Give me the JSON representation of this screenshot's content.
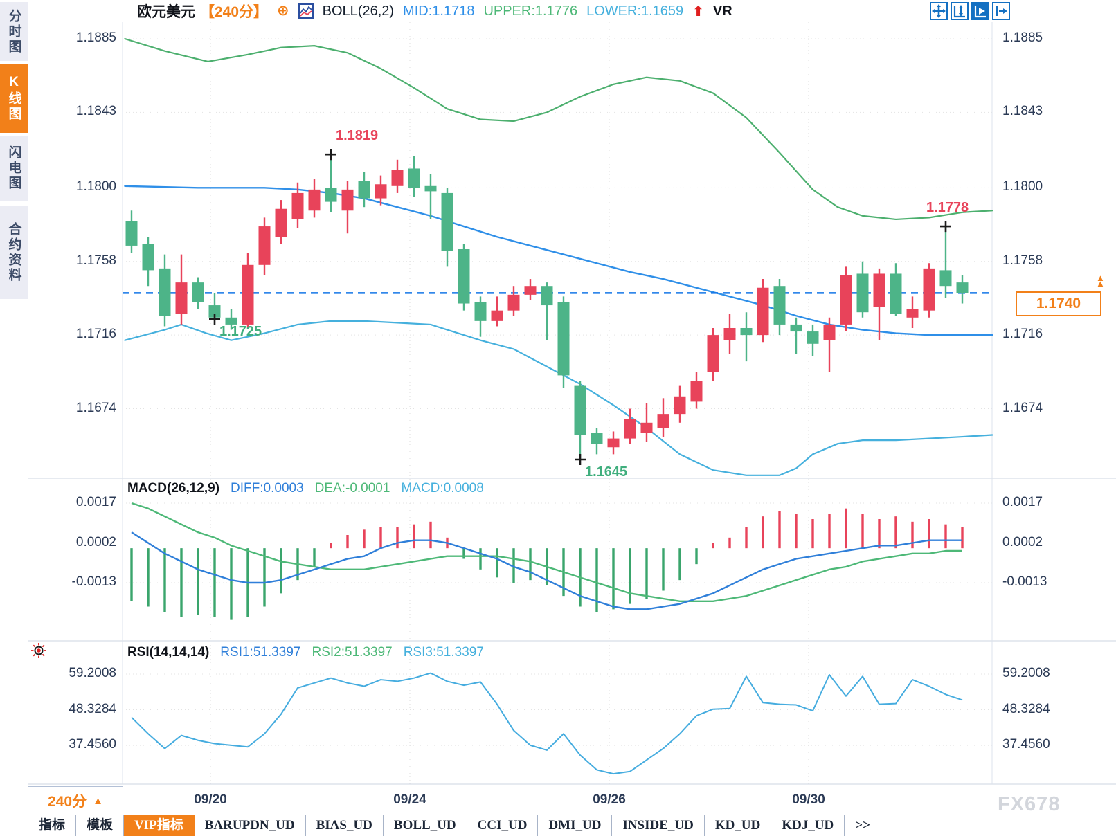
{
  "header": {
    "symbol": "欧元美元",
    "period": "【240分】",
    "add_glyph": "⊕",
    "boll_label": "BOLL(26,2)",
    "mid_label": "MID:1.1718",
    "upper_label": "UPPER:1.1776",
    "lower_label": "LOWER:1.1659",
    "up_arrow_glyph": "⬆",
    "vr_label": "VR"
  },
  "sidebar": {
    "items": [
      {
        "label": "分时图",
        "active": false
      },
      {
        "label": "K线图",
        "active": true
      },
      {
        "label": "闪电图",
        "active": false
      },
      {
        "label": "合约资料",
        "active": false
      }
    ]
  },
  "toolbar_icons": [
    "pan-icon",
    "axis-scale-icon",
    "chart-play-icon",
    "exit-chart-icon"
  ],
  "bottom": {
    "period_label": "240分",
    "period_arrow": "▲",
    "tabs": [
      {
        "label": "指标",
        "active": false
      },
      {
        "label": "模板",
        "active": false
      },
      {
        "label": "VIP指标",
        "active": true
      },
      {
        "label": "BARUPDN_UD",
        "active": false
      },
      {
        "label": "BIAS_UD",
        "active": false
      },
      {
        "label": "BOLL_UD",
        "active": false
      },
      {
        "label": "CCI_UD",
        "active": false
      },
      {
        "label": "DMI_UD",
        "active": false
      },
      {
        "label": "INSIDE_UD",
        "active": false
      },
      {
        "label": "KD_UD",
        "active": false
      },
      {
        "label": "KDJ_UD",
        "active": false
      },
      {
        "label": ">>",
        "active": false
      }
    ]
  },
  "watermark": "FX678",
  "colors": {
    "up": "#e8435a",
    "down": "#4db488",
    "boll_upper": "#4caf6e",
    "boll_mid": "#2f8fe8",
    "boll_lower": "#45b0dd",
    "macd_diff": "#2f7fd9",
    "macd_dea": "#4db877",
    "hist_up": "#e8435a",
    "hist_down": "#3aa56c",
    "rsi_line": "#45acdf",
    "dashed_line": "#1678e8",
    "accent_orange": "#f28019",
    "axis_text": "#2b3a55",
    "marker": "#1b1b1b"
  },
  "chart_data": {
    "type": "candlestick+indicators",
    "title": "欧元美元 240分 K线图 BOLL(26,2)",
    "price_axis_labels": [
      "1.1885",
      "1.1843",
      "1.1800",
      "1.1758",
      "1.1716",
      "1.1674"
    ],
    "date_ticks": [
      {
        "label": "09/20",
        "index": 4.75
      },
      {
        "label": "09/24",
        "index": 16.75
      },
      {
        "label": "09/26",
        "index": 28.75
      },
      {
        "label": "09/30",
        "index": 40.75
      }
    ],
    "current_price_label": "1.1740",
    "candles_ohlc": [
      [
        1.1781,
        1.1787,
        1.1763,
        1.1767
      ],
      [
        1.1768,
        1.1772,
        1.1744,
        1.1753
      ],
      [
        1.1754,
        1.1762,
        1.1721,
        1.1727
      ],
      [
        1.1728,
        1.1762,
        1.1722,
        1.1746
      ],
      [
        1.1746,
        1.1749,
        1.1731,
        1.1735
      ],
      [
        1.1733,
        1.174,
        1.1725,
        1.1726
      ],
      [
        1.1726,
        1.1731,
        1.1719,
        1.1722
      ],
      [
        1.1722,
        1.1763,
        1.172,
        1.1756
      ],
      [
        1.1756,
        1.1783,
        1.175,
        1.1778
      ],
      [
        1.1772,
        1.1793,
        1.1768,
        1.1788
      ],
      [
        1.1782,
        1.1803,
        1.1777,
        1.1797
      ],
      [
        1.1787,
        1.1805,
        1.1783,
        1.1799
      ],
      [
        1.18,
        1.1819,
        1.1786,
        1.1792
      ],
      [
        1.1787,
        1.1804,
        1.1774,
        1.1799
      ],
      [
        1.1804,
        1.1809,
        1.1789,
        1.1794
      ],
      [
        1.1794,
        1.1807,
        1.179,
        1.1802
      ],
      [
        1.1801,
        1.1816,
        1.1797,
        1.181
      ],
      [
        1.1811,
        1.1818,
        1.1795,
        1.18
      ],
      [
        1.1801,
        1.1808,
        1.1782,
        1.1798
      ],
      [
        1.1797,
        1.18,
        1.1755,
        1.1764
      ],
      [
        1.1765,
        1.1768,
        1.173,
        1.1734
      ],
      [
        1.1735,
        1.1738,
        1.1715,
        1.1724
      ],
      [
        1.1724,
        1.1738,
        1.1721,
        1.173
      ],
      [
        1.173,
        1.1744,
        1.1727,
        1.1739
      ],
      [
        1.1739,
        1.1748,
        1.1736,
        1.1744
      ],
      [
        1.1744,
        1.1746,
        1.1713,
        1.1733
      ],
      [
        1.1735,
        1.1738,
        1.1686,
        1.1693
      ],
      [
        1.1687,
        1.169,
        1.1645,
        1.1659
      ],
      [
        1.166,
        1.1663,
        1.1648,
        1.1654
      ],
      [
        1.1652,
        1.1661,
        1.1648,
        1.1657
      ],
      [
        1.1657,
        1.1674,
        1.1654,
        1.1668
      ],
      [
        1.166,
        1.1677,
        1.1655,
        1.1666
      ],
      [
        1.1663,
        1.168,
        1.1658,
        1.1671
      ],
      [
        1.1671,
        1.1687,
        1.1666,
        1.1681
      ],
      [
        1.1678,
        1.1695,
        1.1674,
        1.169
      ],
      [
        1.1695,
        1.172,
        1.169,
        1.1716
      ],
      [
        1.1713,
        1.1728,
        1.1705,
        1.172
      ],
      [
        1.172,
        1.1729,
        1.1701,
        1.1716
      ],
      [
        1.1716,
        1.1748,
        1.1712,
        1.1743
      ],
      [
        1.1744,
        1.1748,
        1.1716,
        1.1722
      ],
      [
        1.1722,
        1.1726,
        1.1705,
        1.1718
      ],
      [
        1.1718,
        1.1722,
        1.1704,
        1.1711
      ],
      [
        1.1713,
        1.1726,
        1.1695,
        1.1722
      ],
      [
        1.1722,
        1.1755,
        1.1718,
        1.175
      ],
      [
        1.1751,
        1.1758,
        1.1726,
        1.1729
      ],
      [
        1.1732,
        1.1754,
        1.1713,
        1.1751
      ],
      [
        1.1751,
        1.1757,
        1.1727,
        1.1728
      ],
      [
        1.1726,
        1.1738,
        1.172,
        1.1731
      ],
      [
        1.173,
        1.1757,
        1.1726,
        1.1754
      ],
      [
        1.1753,
        1.1778,
        1.1737,
        1.1744
      ],
      [
        1.1746,
        1.175,
        1.1734,
        1.174
      ]
    ],
    "boll_upper": [
      [
        -0.4,
        1.1885
      ],
      [
        2,
        1.1878
      ],
      [
        4.6,
        1.1872
      ],
      [
        7,
        1.1876
      ],
      [
        9,
        1.188
      ],
      [
        11,
        1.1881
      ],
      [
        13,
        1.1877
      ],
      [
        15,
        1.1868
      ],
      [
        17,
        1.1857
      ],
      [
        19,
        1.1845
      ],
      [
        21,
        1.1839
      ],
      [
        23,
        1.1838
      ],
      [
        25,
        1.1843
      ],
      [
        27,
        1.1852
      ],
      [
        29,
        1.1859
      ],
      [
        31,
        1.1863
      ],
      [
        33,
        1.1861
      ],
      [
        35,
        1.1854
      ],
      [
        37,
        1.184
      ],
      [
        39,
        1.182
      ],
      [
        41,
        1.1799
      ],
      [
        42.5,
        1.1789
      ],
      [
        44,
        1.1784
      ],
      [
        46,
        1.1782
      ],
      [
        48,
        1.1783
      ],
      [
        50,
        1.1786
      ],
      [
        51.8,
        1.1787
      ]
    ],
    "boll_mid": [
      [
        -0.4,
        1.1801
      ],
      [
        4,
        1.18
      ],
      [
        8,
        1.18
      ],
      [
        10,
        1.1799
      ],
      [
        12,
        1.1797
      ],
      [
        14,
        1.1794
      ],
      [
        16,
        1.1789
      ],
      [
        18,
        1.1784
      ],
      [
        20,
        1.1778
      ],
      [
        22,
        1.1772
      ],
      [
        24,
        1.1767
      ],
      [
        26,
        1.1762
      ],
      [
        28,
        1.1757
      ],
      [
        30,
        1.1752
      ],
      [
        32,
        1.1748
      ],
      [
        34,
        1.1743
      ],
      [
        36,
        1.1738
      ],
      [
        38,
        1.1733
      ],
      [
        40,
        1.1727
      ],
      [
        42,
        1.1722
      ],
      [
        44,
        1.1719
      ],
      [
        46,
        1.1717
      ],
      [
        48,
        1.1716
      ],
      [
        51.8,
        1.1716
      ]
    ],
    "boll_lower": [
      [
        -0.4,
        1.1713
      ],
      [
        2,
        1.1719
      ],
      [
        3,
        1.1722
      ],
      [
        4.5,
        1.1717
      ],
      [
        6,
        1.1713
      ],
      [
        8,
        1.1717
      ],
      [
        10,
        1.1722
      ],
      [
        12,
        1.1724
      ],
      [
        14,
        1.1724
      ],
      [
        16,
        1.1723
      ],
      [
        18,
        1.1722
      ],
      [
        19,
        1.1719
      ],
      [
        21,
        1.1713
      ],
      [
        23,
        1.1708
      ],
      [
        25,
        1.1698
      ],
      [
        27,
        1.1688
      ],
      [
        29,
        1.1676
      ],
      [
        31,
        1.1663
      ],
      [
        33,
        1.1648
      ],
      [
        35,
        1.1639
      ],
      [
        37,
        1.1636
      ],
      [
        39,
        1.1636
      ],
      [
        40,
        1.164
      ],
      [
        41,
        1.1648
      ],
      [
        42.5,
        1.1654
      ],
      [
        44,
        1.1656
      ],
      [
        46,
        1.1656
      ],
      [
        48,
        1.1657
      ],
      [
        50,
        1.1658
      ],
      [
        51.8,
        1.1659
      ]
    ],
    "annotations": [
      {
        "text": "1.1819",
        "candle": 12,
        "price": 1.1819,
        "place": "above",
        "color": "#e8435a"
      },
      {
        "text": "1.1725",
        "candle": 5,
        "price": 1.1725,
        "place": "below",
        "color": "#3fae7d"
      },
      {
        "text": "1.1645",
        "candle": 27,
        "price": 1.1645,
        "place": "below",
        "color": "#3fae7d"
      },
      {
        "text": "1.1778",
        "candle": 49,
        "price": 1.1778,
        "place": "above",
        "color": "#e8435a"
      }
    ],
    "macd": {
      "title": "MACD(26,12,9)",
      "diff_label": "DIFF:0.0003",
      "dea_label": "DEA:-0.0001",
      "macd_label": "MACD:0.0008",
      "axis_labels": [
        "0.0017",
        "0.0002",
        "-0.0013"
      ],
      "hist": [
        -0.002,
        -0.0022,
        -0.0024,
        -0.0026,
        -0.0025,
        -0.0026,
        -0.0027,
        -0.0026,
        -0.0022,
        -0.0017,
        -0.0012,
        -0.0007,
        0.0002,
        0.0005,
        0.0007,
        0.0008,
        0.0008,
        0.0009,
        0.001,
        0.0004,
        -0.0004,
        -0.0008,
        -0.0011,
        -0.0013,
        -0.0012,
        -0.0014,
        -0.0018,
        -0.0022,
        -0.0024,
        -0.0023,
        -0.0021,
        -0.0019,
        -0.0016,
        -0.0012,
        -0.0006,
        0.0002,
        0.0004,
        0.0008,
        0.0012,
        0.0014,
        0.0013,
        0.0011,
        0.0013,
        0.0015,
        0.0013,
        0.0011,
        0.0012,
        0.001,
        0.0011,
        0.0009,
        0.0008
      ],
      "diff": [
        0.0006,
        0.0002,
        -0.0002,
        -0.0005,
        -0.0008,
        -0.001,
        -0.0012,
        -0.0013,
        -0.0013,
        -0.0012,
        -0.001,
        -0.0008,
        -0.0006,
        -0.0004,
        -0.0003,
        0.0,
        0.0002,
        0.0003,
        0.0003,
        0.0002,
        0.0,
        -0.0002,
        -0.0004,
        -0.0007,
        -0.0009,
        -0.0012,
        -0.0015,
        -0.0018,
        -0.002,
        -0.0022,
        -0.0023,
        -0.0023,
        -0.0022,
        -0.0021,
        -0.0019,
        -0.0017,
        -0.0014,
        -0.0011,
        -0.0008,
        -0.0006,
        -0.0004,
        -0.0003,
        -0.0002,
        -0.0001,
        0.0,
        0.0001,
        0.0001,
        0.0002,
        0.0003,
        0.0003,
        0.0003
      ],
      "dea": [
        0.0017,
        0.0015,
        0.0012,
        0.0009,
        0.0006,
        0.0004,
        0.0001,
        -0.0001,
        -0.0003,
        -0.0005,
        -0.0006,
        -0.0007,
        -0.0008,
        -0.0008,
        -0.0008,
        -0.0007,
        -0.0006,
        -0.0005,
        -0.0004,
        -0.0003,
        -0.0003,
        -0.0003,
        -0.0003,
        -0.0004,
        -0.0005,
        -0.0007,
        -0.0009,
        -0.0011,
        -0.0013,
        -0.0015,
        -0.0017,
        -0.0018,
        -0.0019,
        -0.002,
        -0.002,
        -0.002,
        -0.0019,
        -0.0018,
        -0.0016,
        -0.0014,
        -0.0012,
        -0.001,
        -0.0008,
        -0.0007,
        -0.0005,
        -0.0004,
        -0.0003,
        -0.0002,
        -0.0002,
        -0.0001,
        -0.0001
      ]
    },
    "rsi": {
      "title": "RSI(14,14,14)",
      "rsi1_label": "RSI1:51.3397",
      "rsi2_label": "RSI2:51.3397",
      "rsi3_label": "RSI3:51.3397",
      "axis_labels": [
        "59.2008",
        "48.3284",
        "37.4560"
      ],
      "values": [
        46,
        41,
        36.5,
        40.5,
        39,
        38,
        37.5,
        37,
        41,
        47,
        55,
        56.5,
        58,
        56.5,
        55.5,
        57.5,
        57,
        58,
        59.5,
        57,
        55.8,
        56.8,
        50,
        42,
        37.5,
        36,
        41,
        34.5,
        30,
        28.8,
        29.5,
        33,
        36.5,
        41,
        46.5,
        48.5,
        48.7,
        58.5,
        50.5,
        50,
        49.8,
        48,
        59,
        52.5,
        58.5,
        50,
        50.2,
        57.5,
        55.5,
        53,
        51.3
      ]
    }
  }
}
